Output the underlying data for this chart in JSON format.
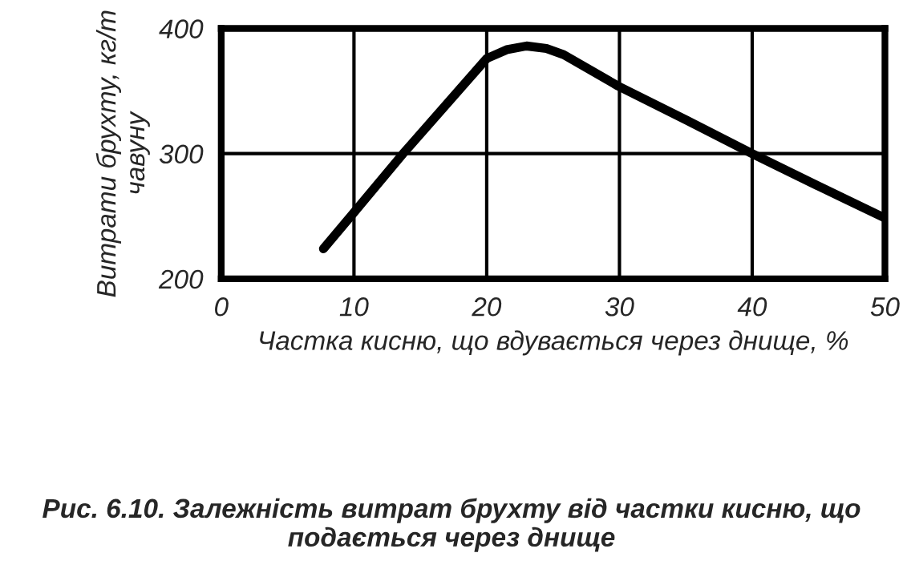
{
  "chart_data": {
    "type": "line",
    "title": "Рис. 6.10. Залежність витрат брухту від частки кисню, що подається через днище",
    "xlabel": "Частка кисню, що вдувається через днище, %",
    "ylabel": "Витрати брухту, кг/т чавуну",
    "series": [
      {
        "color": "#000000",
        "x": [
          7.7,
          10,
          13.7,
          20,
          21.5,
          23,
          24.5,
          25.8,
          29.9,
          35,
          40,
          45,
          49.9
        ],
        "values": [
          224,
          253,
          300,
          376,
          383,
          386,
          384,
          379,
          354,
          327,
          300,
          274,
          249
        ]
      }
    ],
    "xlim": [
      0,
      50
    ],
    "xticks": [
      0,
      10,
      20,
      30,
      40,
      50
    ],
    "ylim": [
      200,
      400
    ],
    "yticks": [
      200,
      300,
      400
    ],
    "grid": true,
    "marker": "none",
    "line_style": "solid"
  }
}
